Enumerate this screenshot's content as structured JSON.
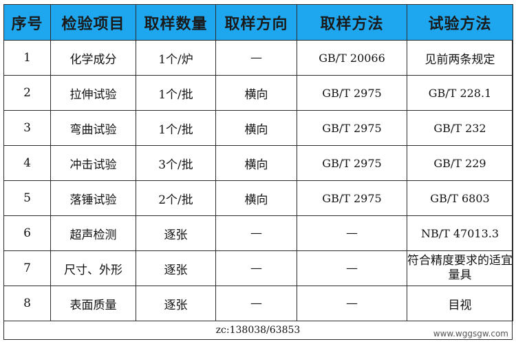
{
  "table": {
    "headers": [
      "序号",
      "检验项目",
      "取样数量",
      "取样方向",
      "取样方法",
      "试验方法"
    ],
    "rows": [
      [
        "1",
        "化学成分",
        "1个/炉",
        "—",
        "GB/T 20066",
        "见前两条规定"
      ],
      [
        "2",
        "拉伸试验",
        "1个/批",
        "横向",
        "GB/T 2975",
        "GB/T 228.1"
      ],
      [
        "3",
        "弯曲试验",
        "1个/批",
        "横向",
        "GB/T 2975",
        "GB/T 232"
      ],
      [
        "4",
        "冲击试验",
        "3个/批",
        "横向",
        "GB/T 2975",
        "GB/T 229"
      ],
      [
        "5",
        "落锤试验",
        "2个/批",
        "横向",
        "GB/T 2975",
        "GB/T 6803"
      ],
      [
        "6",
        "超声检测",
        "逐张",
        "—",
        "—",
        "NB/T 47013.3"
      ],
      [
        "7",
        "尺寸、外形",
        "逐张",
        "—",
        "—",
        "符合精度要求的适宜量具"
      ],
      [
        "8",
        "表面质量",
        "逐张",
        "—",
        "—",
        "目视"
      ]
    ]
  },
  "footer": {
    "code": "zc:138038/63853",
    "watermark": "www.wggsgw.com"
  },
  "colors": {
    "header_bg": "#1ea7ee",
    "border": "#2b2b2b"
  }
}
